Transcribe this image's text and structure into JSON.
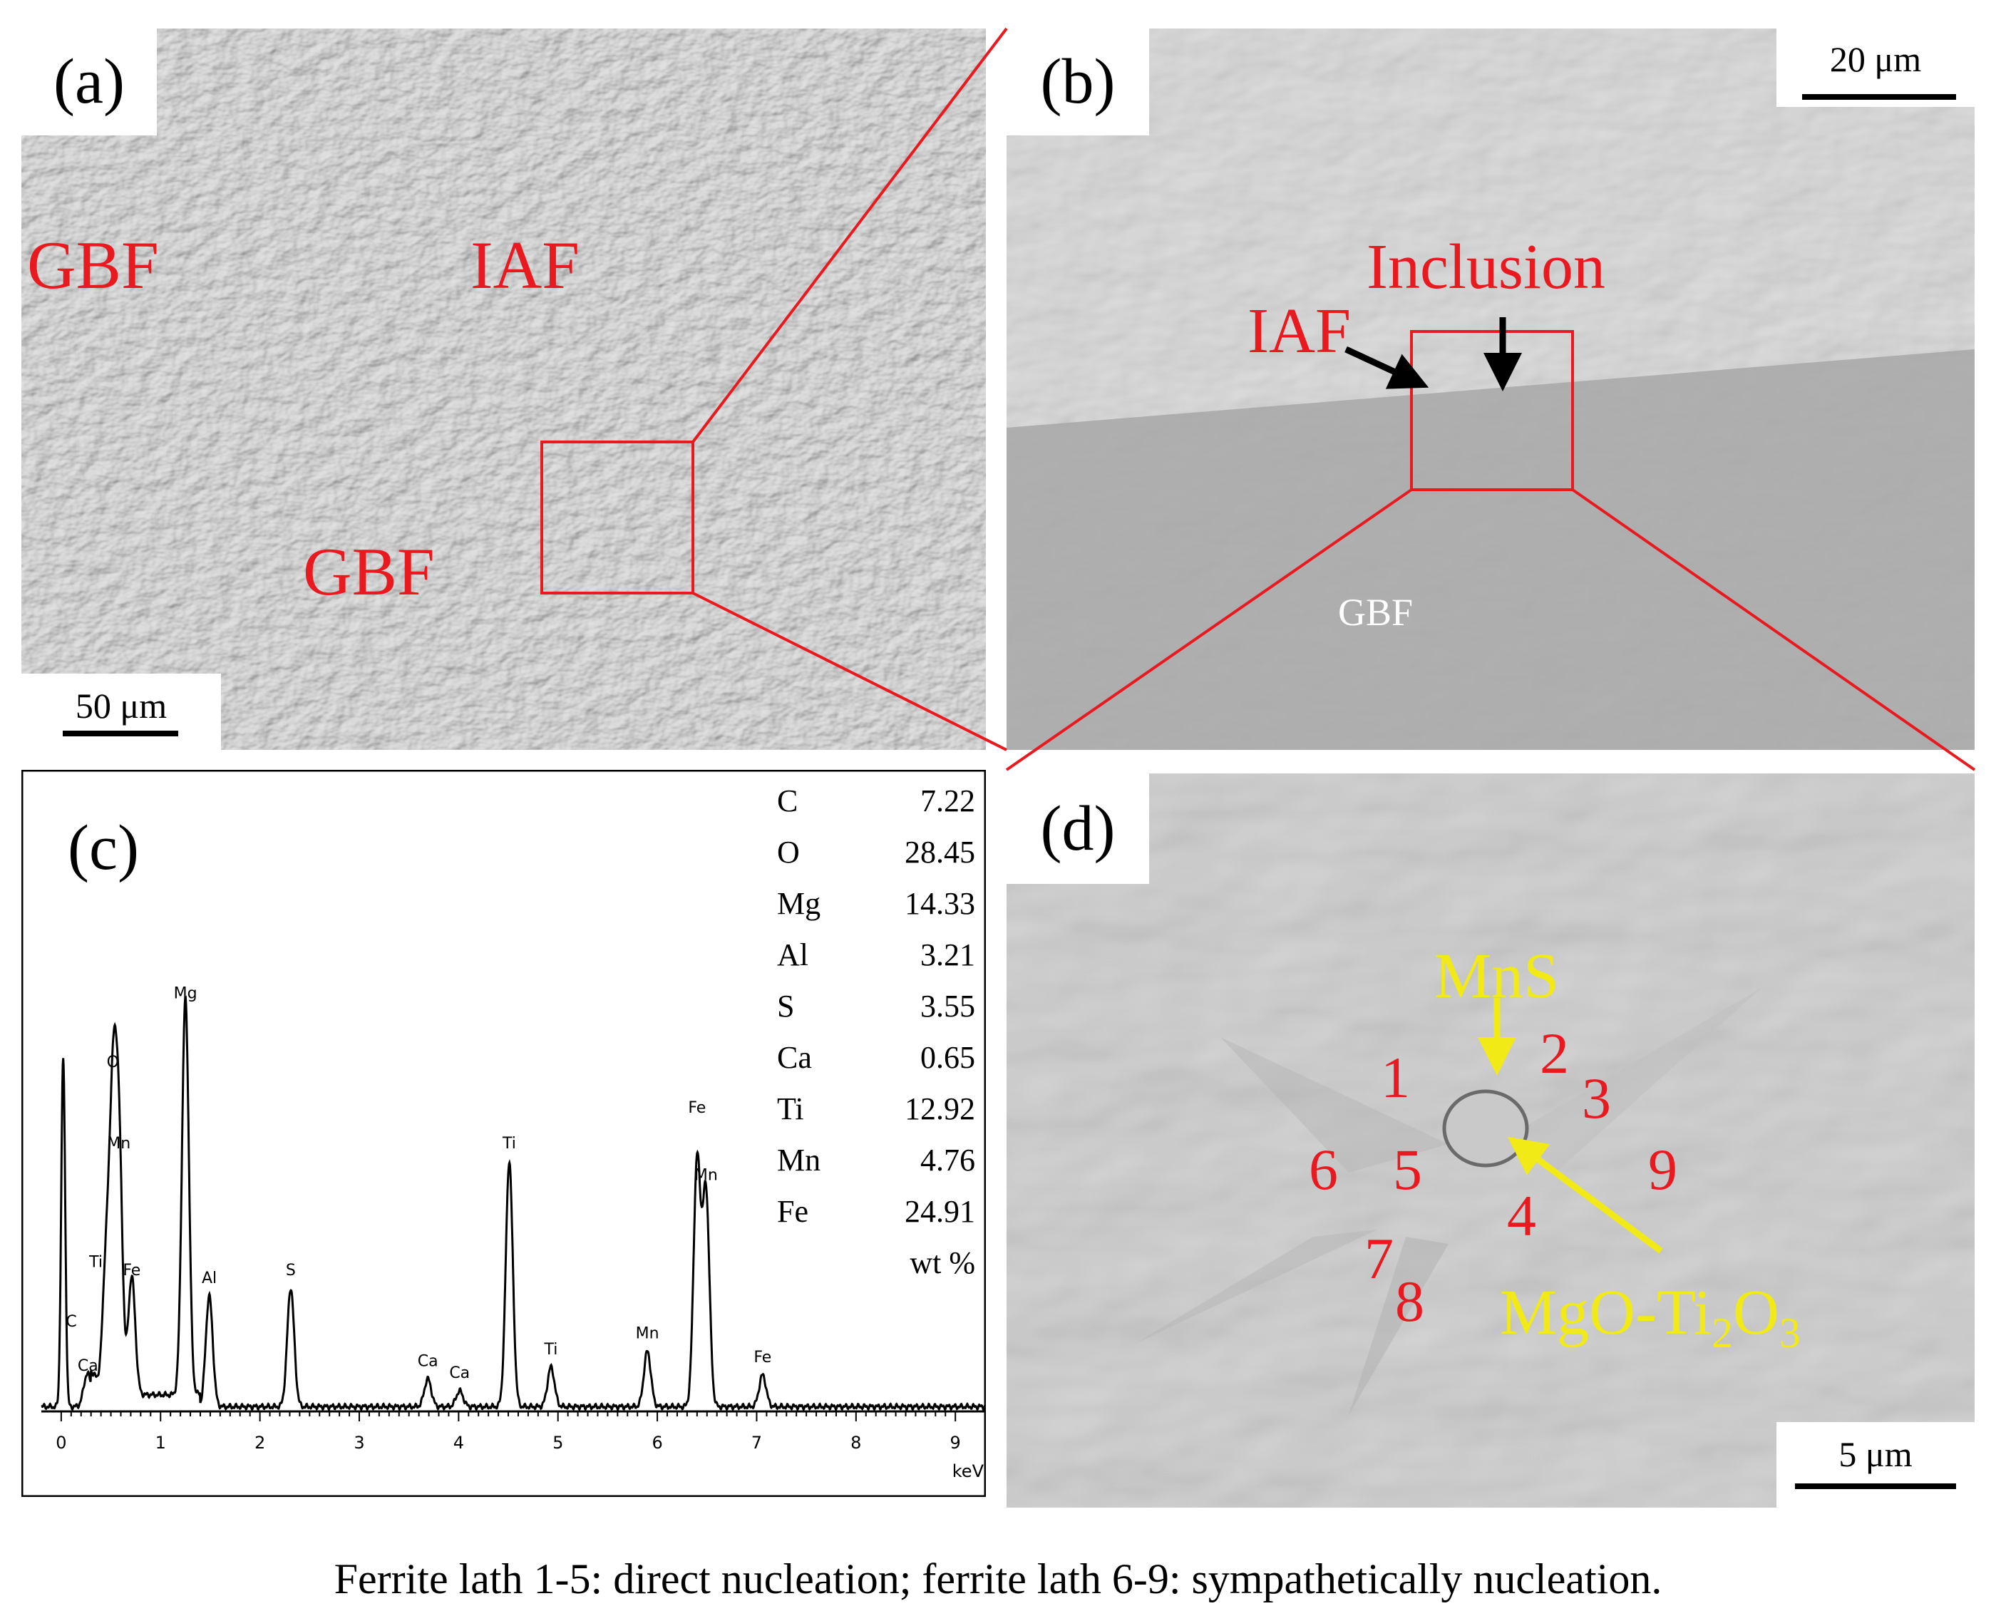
{
  "panels": {
    "a": {
      "tag": "(a)",
      "labels": [
        "GBF",
        "IAF",
        "GBF"
      ],
      "scale": "50 μm"
    },
    "b": {
      "tag": "(b)",
      "labels": {
        "inclusion": "Inclusion",
        "iaf": "IAF",
        "gbf": "GBF"
      },
      "scale": "20 μm"
    },
    "c": {
      "tag": "(c)"
    },
    "d": {
      "tag": "(d)",
      "mns": "MnS",
      "oxide": {
        "prefix": "MgO-Ti",
        "sub1": "2",
        "mid": "O",
        "sub2": "3"
      },
      "laths": [
        "1",
        "2",
        "3",
        "4",
        "5",
        "6",
        "7",
        "8",
        "9"
      ],
      "scale": "5 μm"
    }
  },
  "composition": {
    "rows": [
      {
        "element": "C",
        "value": "7.22"
      },
      {
        "element": "O",
        "value": "28.45"
      },
      {
        "element": "Mg",
        "value": "14.33"
      },
      {
        "element": "Al",
        "value": "3.21"
      },
      {
        "element": "S",
        "value": "3.55"
      },
      {
        "element": "Ca",
        "value": "0.65"
      },
      {
        "element": "Ti",
        "value": "12.92"
      },
      {
        "element": "Mn",
        "value": "4.76"
      },
      {
        "element": "Fe",
        "value": "24.91"
      }
    ],
    "unit": "wt %"
  },
  "chart_data": {
    "type": "line",
    "title": "",
    "xlabel": "keV",
    "ylabel": "",
    "xlim": [
      -0.2,
      9.3
    ],
    "x_ticks": [
      0,
      1,
      2,
      3,
      4,
      5,
      6,
      7,
      8,
      9
    ],
    "grid": false,
    "peaks": [
      {
        "x": 0.02,
        "height": 0.88,
        "label": ""
      },
      {
        "x": 0.26,
        "height": 0.08,
        "label": "C"
      },
      {
        "x": 0.34,
        "height": 0.04,
        "label": "Ca"
      },
      {
        "x": 0.45,
        "height": 0.32,
        "label": "Ti"
      },
      {
        "x": 0.52,
        "height": 0.7,
        "label": "O"
      },
      {
        "x": 0.58,
        "height": 0.62,
        "label": "Mn"
      },
      {
        "x": 0.71,
        "height": 0.3,
        "label": "Fe"
      },
      {
        "x": 1.25,
        "height": 1.0,
        "label": "Mg"
      },
      {
        "x": 1.49,
        "height": 0.28,
        "label": "Al"
      },
      {
        "x": 2.31,
        "height": 0.3,
        "label": "S"
      },
      {
        "x": 3.69,
        "height": 0.07,
        "label": "Ca"
      },
      {
        "x": 4.01,
        "height": 0.04,
        "label": "Ca"
      },
      {
        "x": 4.51,
        "height": 0.62,
        "label": "Ti"
      },
      {
        "x": 4.93,
        "height": 0.1,
        "label": "Ti"
      },
      {
        "x": 5.9,
        "height": 0.14,
        "label": "Mn"
      },
      {
        "x": 6.4,
        "height": 0.62,
        "label": "Fe"
      },
      {
        "x": 6.49,
        "height": 0.54,
        "label": "Mn"
      },
      {
        "x": 7.06,
        "height": 0.08,
        "label": "Fe"
      }
    ]
  },
  "caption": "Ferrite lath 1-5: direct nucleation; ferrite lath 6-9: sympathetically nucleation.",
  "colors": {
    "annotation_red": "#e8191f",
    "annotation_yellow": "#f2ea16",
    "sem_gray": "#9b9b9b"
  }
}
